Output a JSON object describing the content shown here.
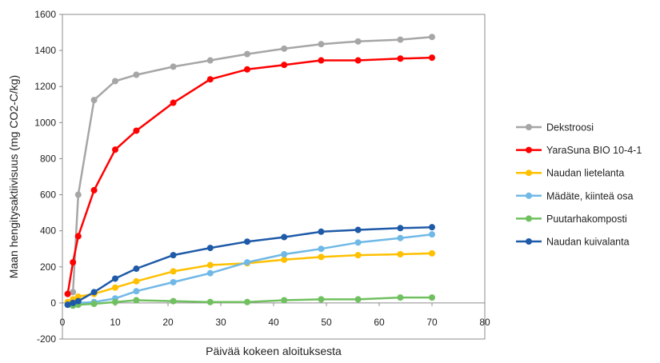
{
  "chart_data": {
    "type": "line",
    "xlabel": "Päivää kokeen aloituksesta",
    "ylabel": "Maan hengitysaktiivisuus (mg CO2-C/kg)",
    "xlim": [
      0,
      80
    ],
    "ylim": [
      -200,
      1600
    ],
    "xticks": [
      0,
      10,
      20,
      30,
      40,
      50,
      60,
      70,
      80
    ],
    "yticks": [
      -200,
      0,
      200,
      400,
      600,
      800,
      1000,
      1200,
      1400,
      1600
    ],
    "grid": false,
    "legend_position": "right",
    "series": [
      {
        "name": "Dekstroosi",
        "color": "#A6A6A6",
        "x": [
          1,
          2,
          3,
          6,
          10,
          14,
          21,
          28,
          35,
          42,
          49,
          56,
          64,
          70
        ],
        "y": [
          50,
          60,
          600,
          1125,
          1230,
          1265,
          1310,
          1345,
          1380,
          1410,
          1435,
          1450,
          1460,
          1475
        ]
      },
      {
        "name": "YaraSuna BIO 10-4-1",
        "color": "#FF0000",
        "x": [
          1,
          2,
          3,
          6,
          10,
          14,
          21,
          28,
          35,
          42,
          49,
          56,
          64,
          70
        ],
        "y": [
          50,
          225,
          370,
          625,
          850,
          955,
          1110,
          1240,
          1295,
          1320,
          1345,
          1345,
          1355,
          1360
        ]
      },
      {
        "name": "Naudan lietelanta",
        "color": "#FFC000",
        "x": [
          1,
          2,
          3,
          6,
          10,
          14,
          21,
          28,
          35,
          42,
          49,
          56,
          64,
          70
        ],
        "y": [
          5,
          20,
          35,
          50,
          85,
          120,
          175,
          210,
          220,
          240,
          255,
          265,
          270,
          275
        ]
      },
      {
        "name": "Mädäte, kiinteä osa",
        "color": "#70B8E6",
        "x": [
          1,
          2,
          3,
          6,
          10,
          14,
          21,
          28,
          35,
          42,
          49,
          56,
          64,
          70
        ],
        "y": [
          -10,
          -5,
          0,
          5,
          25,
          65,
          115,
          165,
          225,
          270,
          300,
          335,
          360,
          380
        ]
      },
      {
        "name": "Puutarhakomposti",
        "color": "#70C060",
        "x": [
          1,
          2,
          3,
          6,
          10,
          14,
          21,
          28,
          35,
          42,
          49,
          56,
          64,
          70
        ],
        "y": [
          -10,
          -15,
          -10,
          -5,
          5,
          15,
          10,
          5,
          5,
          15,
          20,
          20,
          30,
          30
        ]
      },
      {
        "name": "Naudan kuivalanta",
        "color": "#1F5AA8",
        "x": [
          1,
          2,
          3,
          6,
          10,
          14,
          21,
          28,
          35,
          42,
          49,
          56,
          64,
          70
        ],
        "y": [
          -10,
          0,
          10,
          60,
          135,
          190,
          265,
          305,
          340,
          365,
          395,
          405,
          415,
          420
        ]
      }
    ]
  }
}
